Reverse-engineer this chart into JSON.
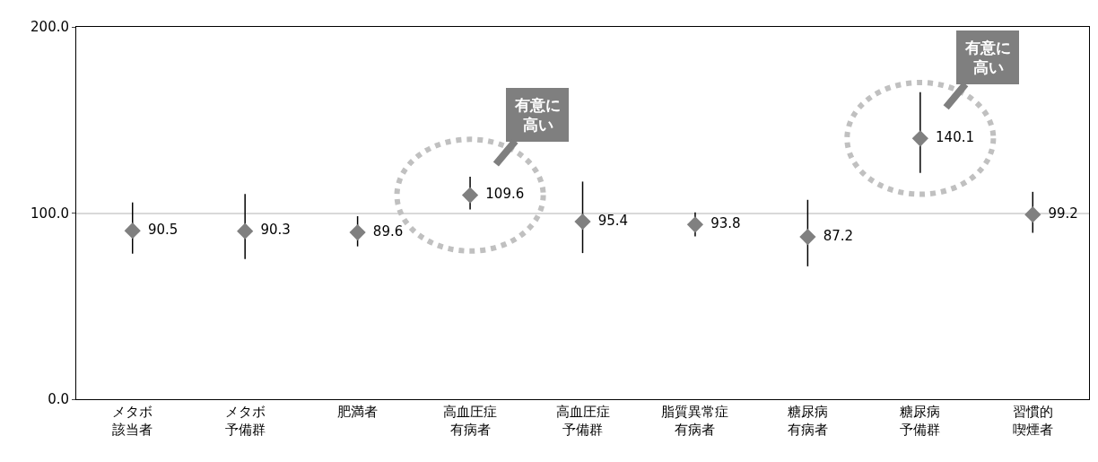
{
  "chart_data": {
    "type": "scatter",
    "categories": [
      "メタボ該当者",
      "メタボ予備群",
      "肥満者",
      "高血圧症有病者",
      "高血圧症予備群",
      "脂質異常症有病者",
      "糖尿病有病者",
      "糖尿病予備群",
      "習慣的喫煙者"
    ],
    "values": [
      90.5,
      90.3,
      89.6,
      109.6,
      95.4,
      93.8,
      87.2,
      140.1,
      99.2
    ],
    "errors": [
      [
        78.2,
        105.7
      ],
      [
        75.3,
        110.2
      ],
      [
        82.1,
        98.3
      ],
      [
        101.9,
        119.5
      ],
      [
        78.5,
        116.9
      ],
      [
        87.5,
        100.4
      ],
      [
        71.4,
        107.1
      ],
      [
        121.6,
        164.9
      ],
      [
        89.4,
        111.4
      ]
    ],
    "color": "#808080",
    "marker": "diamond",
    "data_labels": true,
    "ylim": [
      0,
      200
    ],
    "yticks": [
      {
        "value": 0,
        "label": "0.0"
      },
      {
        "value": 100,
        "label": "100.0"
      },
      {
        "value": 200,
        "label": "200.0"
      }
    ],
    "grid": "y",
    "annotations": [
      {
        "text": "有意に高い",
        "x": "高血圧症有病者",
        "y": 109.6
      },
      {
        "text": "有意に高い",
        "x": "糖尿病予備群",
        "y": 140.1
      }
    ]
  }
}
